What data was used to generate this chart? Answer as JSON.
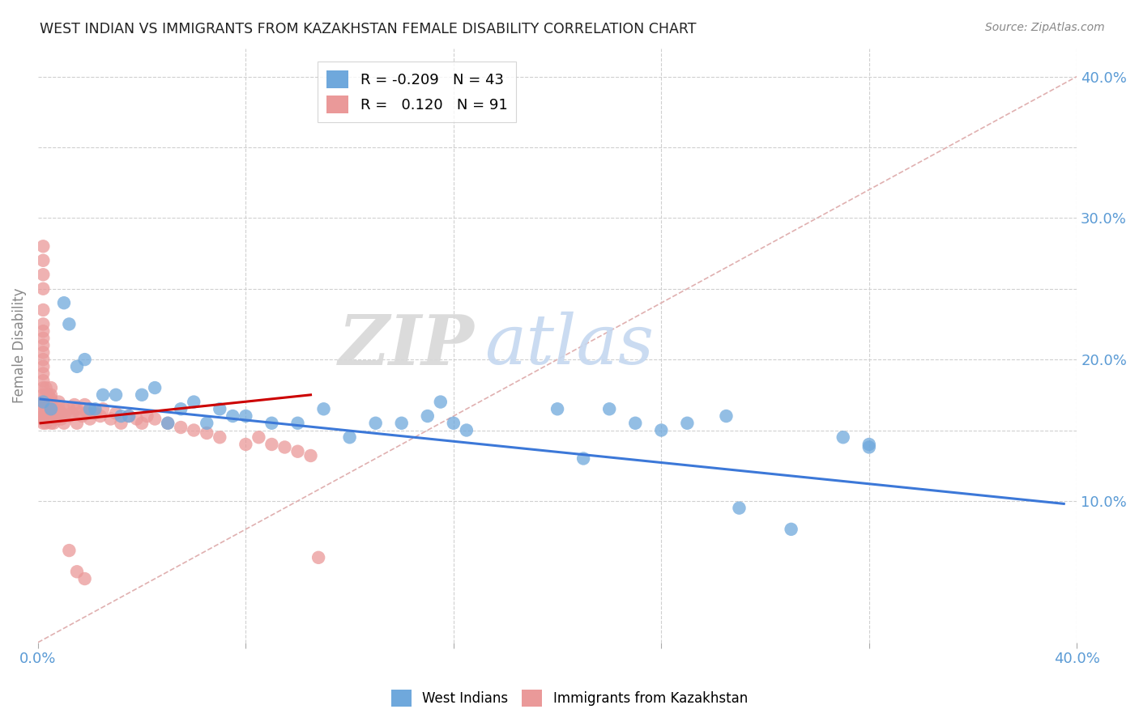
{
  "title": "WEST INDIAN VS IMMIGRANTS FROM KAZAKHSTAN FEMALE DISABILITY CORRELATION CHART",
  "source": "Source: ZipAtlas.com",
  "ylabel": "Female Disability",
  "xlim": [
    0.0,
    0.4
  ],
  "ylim": [
    0.0,
    0.42
  ],
  "legend_R_blue": "-0.209",
  "legend_N_blue": "43",
  "legend_R_pink": "0.120",
  "legend_N_pink": "91",
  "blue_color": "#6fa8dc",
  "pink_color": "#ea9999",
  "blue_line_color": "#3c78d8",
  "pink_line_color": "#cc0000",
  "diagonal_color": "#cccccc",
  "watermark_zip": "ZIP",
  "watermark_atlas": "atlas",
  "blue_line_x": [
    0.001,
    0.395
  ],
  "blue_line_y": [
    0.172,
    0.098
  ],
  "pink_line_x": [
    0.001,
    0.105
  ],
  "pink_line_y": [
    0.155,
    0.175
  ],
  "west_indians_x": [
    0.002,
    0.005,
    0.01,
    0.012,
    0.015,
    0.018,
    0.02,
    0.022,
    0.025,
    0.03,
    0.032,
    0.035,
    0.04,
    0.045,
    0.05,
    0.055,
    0.06,
    0.065,
    0.07,
    0.075,
    0.08,
    0.09,
    0.1,
    0.11,
    0.12,
    0.13,
    0.14,
    0.15,
    0.155,
    0.16,
    0.165,
    0.2,
    0.21,
    0.22,
    0.23,
    0.24,
    0.25,
    0.265,
    0.27,
    0.29,
    0.31,
    0.32,
    0.32
  ],
  "west_indians_y": [
    0.17,
    0.165,
    0.24,
    0.225,
    0.195,
    0.2,
    0.165,
    0.165,
    0.175,
    0.175,
    0.16,
    0.16,
    0.175,
    0.18,
    0.155,
    0.165,
    0.17,
    0.155,
    0.165,
    0.16,
    0.16,
    0.155,
    0.155,
    0.165,
    0.145,
    0.155,
    0.155,
    0.16,
    0.17,
    0.155,
    0.15,
    0.165,
    0.13,
    0.165,
    0.155,
    0.15,
    0.155,
    0.16,
    0.095,
    0.08,
    0.145,
    0.138,
    0.14
  ],
  "kazakhstan_x": [
    0.002,
    0.002,
    0.002,
    0.002,
    0.002,
    0.002,
    0.002,
    0.002,
    0.002,
    0.002,
    0.002,
    0.002,
    0.002,
    0.002,
    0.002,
    0.002,
    0.002,
    0.002,
    0.002,
    0.002,
    0.002,
    0.002,
    0.002,
    0.003,
    0.003,
    0.003,
    0.003,
    0.003,
    0.003,
    0.004,
    0.004,
    0.004,
    0.004,
    0.005,
    0.005,
    0.005,
    0.005,
    0.005,
    0.005,
    0.005,
    0.005,
    0.006,
    0.006,
    0.007,
    0.007,
    0.008,
    0.008,
    0.008,
    0.009,
    0.009,
    0.01,
    0.01,
    0.01,
    0.012,
    0.012,
    0.013,
    0.014,
    0.015,
    0.015,
    0.016,
    0.017,
    0.018,
    0.019,
    0.02,
    0.02,
    0.022,
    0.024,
    0.025,
    0.028,
    0.03,
    0.032,
    0.035,
    0.038,
    0.04,
    0.042,
    0.045,
    0.05,
    0.055,
    0.06,
    0.065,
    0.07,
    0.08,
    0.085,
    0.09,
    0.095,
    0.1,
    0.105,
    0.108,
    0.012,
    0.015,
    0.018
  ],
  "kazakhstan_y": [
    0.155,
    0.158,
    0.16,
    0.162,
    0.165,
    0.168,
    0.17,
    0.175,
    0.18,
    0.185,
    0.19,
    0.195,
    0.2,
    0.205,
    0.21,
    0.215,
    0.22,
    0.225,
    0.235,
    0.25,
    0.26,
    0.27,
    0.28,
    0.155,
    0.158,
    0.162,
    0.168,
    0.175,
    0.18,
    0.16,
    0.165,
    0.17,
    0.175,
    0.155,
    0.158,
    0.162,
    0.165,
    0.168,
    0.172,
    0.175,
    0.18,
    0.155,
    0.16,
    0.158,
    0.165,
    0.16,
    0.165,
    0.17,
    0.158,
    0.162,
    0.155,
    0.16,
    0.165,
    0.16,
    0.165,
    0.162,
    0.168,
    0.155,
    0.165,
    0.162,
    0.16,
    0.168,
    0.162,
    0.165,
    0.158,
    0.162,
    0.16,
    0.165,
    0.158,
    0.162,
    0.155,
    0.16,
    0.158,
    0.155,
    0.16,
    0.158,
    0.155,
    0.152,
    0.15,
    0.148,
    0.145,
    0.14,
    0.145,
    0.14,
    0.138,
    0.135,
    0.132,
    0.06,
    0.065,
    0.05,
    0.045
  ]
}
